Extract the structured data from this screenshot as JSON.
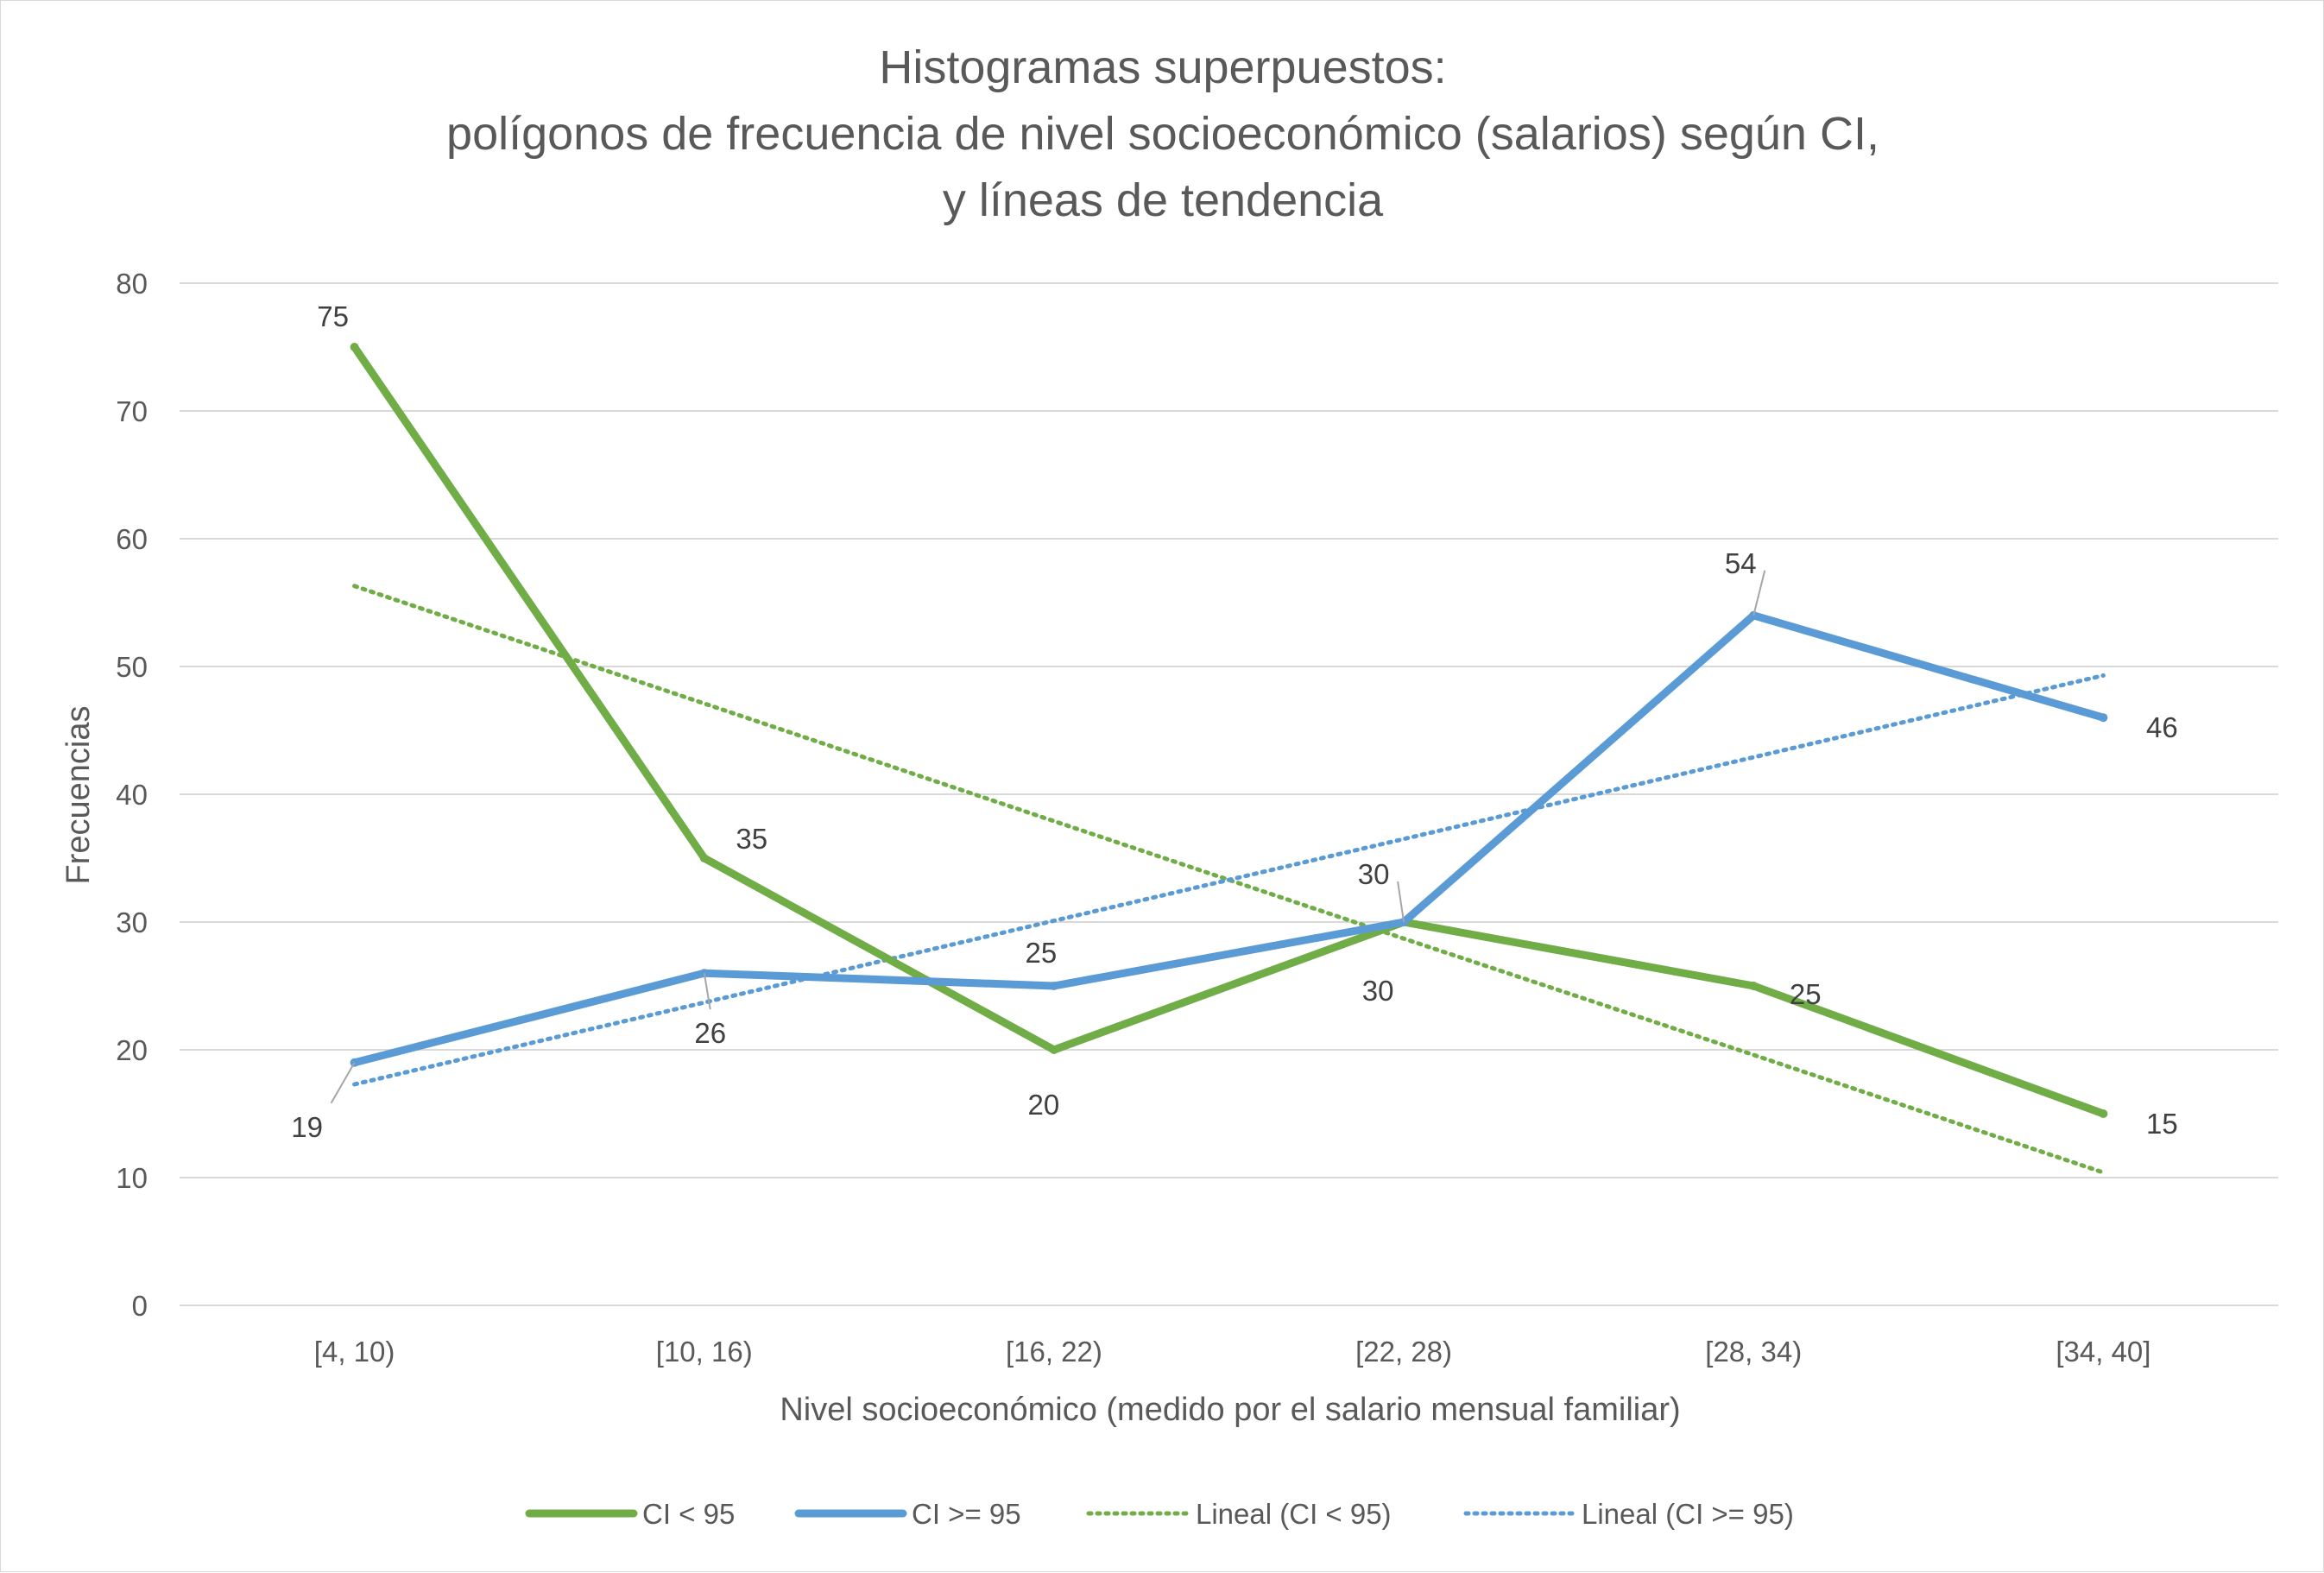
{
  "chart_data": {
    "type": "line",
    "title": [
      "Histogramas superpuestos:",
      "polígonos de frecuencia de nivel socioeconómico (salarios) según CI,",
      "y líneas de tendencia"
    ],
    "xlabel": "Nivel socioeconómico (medido por el salario mensual familiar)",
    "ylabel": "Frecuencias",
    "categories": [
      "[4, 10)",
      "[10, 16)",
      "[16, 22)",
      "[22, 28)",
      "[28, 34)",
      "[34, 40]"
    ],
    "ylim": [
      0,
      80
    ],
    "yticks": [
      0,
      10,
      20,
      30,
      40,
      50,
      60,
      70,
      80
    ],
    "grid": true,
    "legend_position": "bottom",
    "series": [
      {
        "name": "CI < 95",
        "values": [
          75,
          35,
          20,
          30,
          25,
          15
        ],
        "color": "#70ad47",
        "style": "solid"
      },
      {
        "name": "CI >= 95",
        "values": [
          19,
          26,
          25,
          30,
          54,
          46
        ],
        "color": "#5b9bd5",
        "style": "solid"
      }
    ],
    "trendlines": [
      {
        "name": "Lineal (CI < 95)",
        "values": [
          56.3,
          47.1,
          37.9,
          28.7,
          19.6,
          10.4
        ],
        "color": "#70ad47",
        "style": "dotted"
      },
      {
        "name": "Lineal (CI >= 95)",
        "values": [
          17.3,
          23.7,
          30.1,
          36.5,
          42.9,
          49.3
        ],
        "color": "#5b9bd5",
        "style": "dotted"
      }
    ]
  }
}
